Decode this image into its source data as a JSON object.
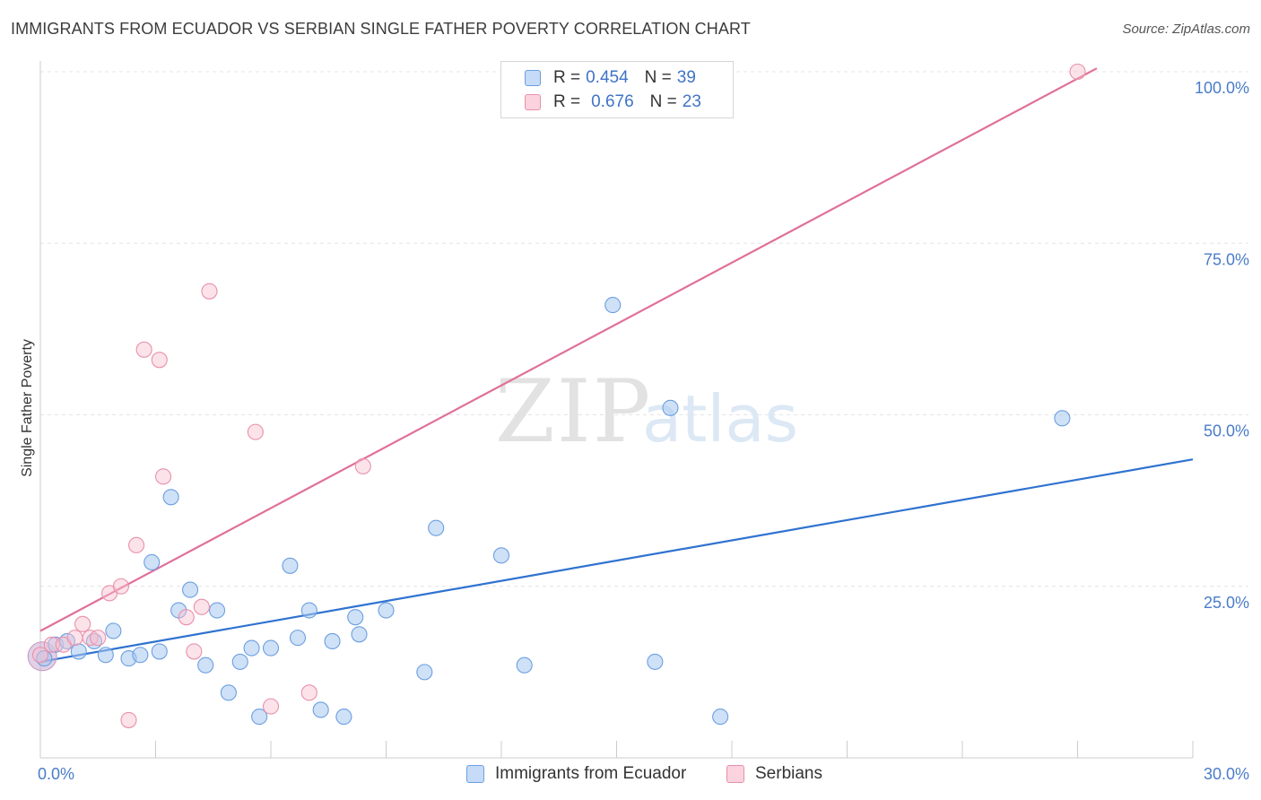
{
  "header": {
    "title": "IMMIGRANTS FROM ECUADOR VS SERBIAN SINGLE FATHER POVERTY CORRELATION CHART",
    "source": "Source: ZipAtlas.com"
  },
  "watermark": {
    "zip": "ZIP",
    "atlas": "atlas"
  },
  "legend": {
    "rows": [
      {
        "r_label": "R =",
        "r_value": "0.454",
        "n_label": "N =",
        "n_value": "39",
        "color": "#a8c8f0",
        "border": "#6b9fe0"
      },
      {
        "r_label": "R =",
        "r_value": "0.676",
        "n_label": "N =",
        "n_value": "23",
        "color": "#f8c0d0",
        "border": "#e890aa"
      }
    ]
  },
  "bottom_legend": {
    "items": [
      {
        "label": "Immigrants from Ecuador",
        "color": "#c6dbf7",
        "border": "#6b9fe0"
      },
      {
        "label": "Serbians",
        "color": "#fbd3de",
        "border": "#e890aa"
      }
    ]
  },
  "chart_data": {
    "type": "scatter",
    "title": "IMMIGRANTS FROM ECUADOR VS SERBIAN SINGLE FATHER POVERTY CORRELATION CHART",
    "ylabel": "Single Father Poverty",
    "xlim": [
      0,
      30
    ],
    "ylim": [
      0,
      100
    ],
    "x_tick_labels": [
      "0.0%",
      "30.0%"
    ],
    "y_ticks": [
      25,
      50,
      75,
      100
    ],
    "y_tick_labels": [
      "25.0%",
      "50.0%",
      "75.0%",
      "100.0%"
    ],
    "grid": true,
    "legend_position": "top-center",
    "series": [
      {
        "name": "Immigrants from Ecuador",
        "color": "#6b9fe0",
        "fill": "rgba(168,200,240,0.55)",
        "trend_color": "#2f72d0",
        "trend": {
          "x": [
            0,
            30
          ],
          "y": [
            14.0,
            43.5
          ]
        },
        "points": [
          [
            0.1,
            14.5
          ],
          [
            0.4,
            16.5
          ],
          [
            0.7,
            17.0
          ],
          [
            1.0,
            15.5
          ],
          [
            1.4,
            17.0
          ],
          [
            1.7,
            15.0
          ],
          [
            1.9,
            18.5
          ],
          [
            2.3,
            14.5
          ],
          [
            2.6,
            15.0
          ],
          [
            2.9,
            28.5
          ],
          [
            3.1,
            15.5
          ],
          [
            3.4,
            38.0
          ],
          [
            3.6,
            21.5
          ],
          [
            3.9,
            24.5
          ],
          [
            4.3,
            13.5
          ],
          [
            4.6,
            21.5
          ],
          [
            4.9,
            9.5
          ],
          [
            5.2,
            14.0
          ],
          [
            5.5,
            16.0
          ],
          [
            5.7,
            6.0
          ],
          [
            6.0,
            16.0
          ],
          [
            6.5,
            28.0
          ],
          [
            6.7,
            17.5
          ],
          [
            7.0,
            21.5
          ],
          [
            7.3,
            7.0
          ],
          [
            7.6,
            17.0
          ],
          [
            7.9,
            6.0
          ],
          [
            8.2,
            20.5
          ],
          [
            8.3,
            18.0
          ],
          [
            9.0,
            21.5
          ],
          [
            10.0,
            12.5
          ],
          [
            10.3,
            33.5
          ],
          [
            12.0,
            29.5
          ],
          [
            12.6,
            13.5
          ],
          [
            14.9,
            66.0
          ],
          [
            16.0,
            14.0
          ],
          [
            16.4,
            51.0
          ],
          [
            17.7,
            6.0
          ],
          [
            26.6,
            49.5
          ]
        ]
      },
      {
        "name": "Serbians",
        "color": "#e890aa",
        "fill": "rgba(248,192,208,0.45)",
        "trend_color": "#e0709a",
        "trend": {
          "x": [
            0,
            27.5
          ],
          "y": [
            18.5,
            100.5
          ]
        },
        "points": [
          [
            0.0,
            15.0
          ],
          [
            0.3,
            16.5
          ],
          [
            0.6,
            16.5
          ],
          [
            0.9,
            17.5
          ],
          [
            1.1,
            19.5
          ],
          [
            1.3,
            17.5
          ],
          [
            1.5,
            17.5
          ],
          [
            1.8,
            24.0
          ],
          [
            2.1,
            25.0
          ],
          [
            2.3,
            5.5
          ],
          [
            2.5,
            31.0
          ],
          [
            2.7,
            59.5
          ],
          [
            3.1,
            58.0
          ],
          [
            3.2,
            41.0
          ],
          [
            3.8,
            20.5
          ],
          [
            4.0,
            15.5
          ],
          [
            4.2,
            22.0
          ],
          [
            4.4,
            68.0
          ],
          [
            5.6,
            47.5
          ],
          [
            6.0,
            7.5
          ],
          [
            7.0,
            9.5
          ],
          [
            8.4,
            42.5
          ],
          [
            27.0,
            100.0
          ]
        ]
      }
    ]
  }
}
